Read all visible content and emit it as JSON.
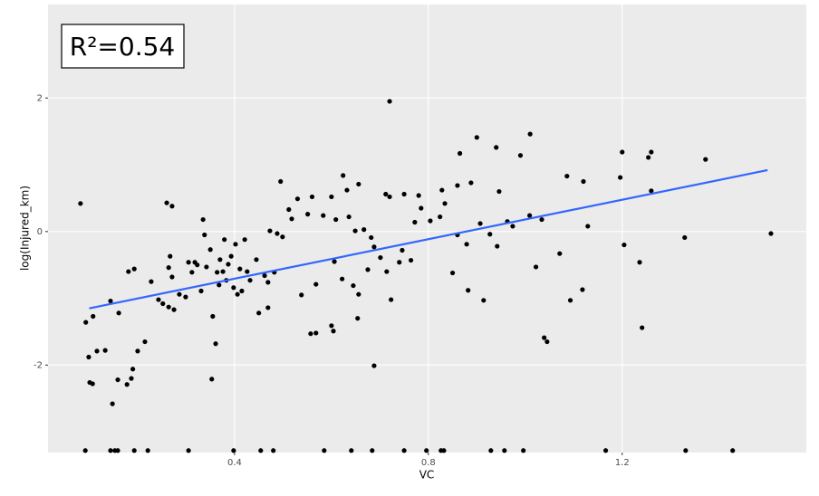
{
  "chart_data": {
    "type": "scatter",
    "x_label": "VC",
    "y_label": "log(Injured_km)",
    "annotation": "R²=0.54",
    "xlim": [
      0.015,
      1.58
    ],
    "ylim": [
      -3.31,
      3.4
    ],
    "xticks": [
      0.4,
      0.8,
      1.2
    ],
    "yticks": [
      -2,
      0,
      2
    ],
    "grid": true,
    "series": [
      {
        "name": "points",
        "color": "#000000",
        "x": [
          0.72,
          0.9,
          1.01,
          0.94,
          0.865,
          0.99,
          1.2,
          1.26,
          1.254,
          1.372,
          1.086,
          1.12,
          1.196,
          1.26,
          0.946,
          0.86,
          0.888,
          0.828,
          0.78,
          0.75,
          0.712,
          0.72,
          0.624,
          0.632,
          0.656,
          0.6,
          0.56,
          0.53,
          0.512,
          0.518,
          0.551,
          0.583,
          0.609,
          0.636,
          0.649,
          0.667,
          0.682,
          0.688,
          0.701,
          0.714,
          0.723,
          0.74,
          0.746,
          0.764,
          0.772,
          0.785,
          0.804,
          0.824,
          0.834,
          0.85,
          0.86,
          0.879,
          0.882,
          0.907,
          0.914,
          0.927,
          0.942,
          0.963,
          0.974,
          1.009,
          1.022,
          1.034,
          1.039,
          1.045,
          1.071,
          1.093,
          1.118,
          1.129,
          1.204,
          1.236,
          1.241,
          1.329,
          1.507,
          0.688,
          0.568,
          0.557,
          0.6,
          0.604,
          0.654,
          0.538,
          0.568,
          0.606,
          0.622,
          0.645,
          0.656,
          0.675,
          0.482,
          0.469,
          0.45,
          0.469,
          0.082,
          0.093,
          0.099,
          0.101,
          0.107,
          0.108,
          0.116,
          0.133,
          0.144,
          0.148,
          0.161,
          0.159,
          0.178,
          0.181,
          0.187,
          0.19,
          0.193,
          0.2,
          0.215,
          0.228,
          0.243,
          0.252,
          0.26,
          0.271,
          0.264,
          0.275,
          0.267,
          0.264,
          0.271,
          0.286,
          0.299,
          0.305,
          0.312,
          0.318,
          0.323,
          0.331,
          0.335,
          0.338,
          0.342,
          0.35,
          0.353,
          0.355,
          0.361,
          0.364,
          0.368,
          0.37,
          0.376,
          0.379,
          0.383,
          0.387,
          0.393,
          0.398,
          0.402,
          0.406,
          0.411,
          0.415,
          0.421,
          0.426,
          0.432,
          0.445,
          0.462,
          0.473,
          0.488,
          0.495,
          0.499,
          0.092,
          0.144,
          0.153,
          0.159,
          0.193,
          0.221,
          0.305,
          0.398,
          0.454,
          0.48,
          0.585,
          0.641,
          0.684,
          0.75,
          0.796,
          0.826,
          0.832,
          0.929,
          0.957,
          0.996,
          1.166,
          1.331,
          1.428
        ],
        "values": [
          1.95,
          1.41,
          1.46,
          1.26,
          1.17,
          1.14,
          1.19,
          1.19,
          1.11,
          1.08,
          0.83,
          0.75,
          0.81,
          0.61,
          0.6,
          0.69,
          0.73,
          0.62,
          0.54,
          0.56,
          0.56,
          0.52,
          0.84,
          0.62,
          0.71,
          0.52,
          0.52,
          0.49,
          0.33,
          0.19,
          0.26,
          0.24,
          0.18,
          0.22,
          0.01,
          0.03,
          -0.09,
          -0.23,
          -0.39,
          -0.6,
          -1.02,
          -0.46,
          -0.28,
          -0.43,
          0.14,
          0.35,
          0.16,
          0.22,
          0.42,
          -0.62,
          -0.05,
          -0.19,
          -0.88,
          0.12,
          -1.03,
          -0.04,
          -0.22,
          0.15,
          0.08,
          0.24,
          -0.53,
          0.18,
          -1.59,
          -1.65,
          -0.33,
          -1.03,
          -0.87,
          0.08,
          -0.2,
          -0.46,
          -1.44,
          -0.09,
          -0.03,
          -2.01,
          -1.52,
          -1.53,
          -1.41,
          -1.49,
          -1.3,
          -0.95,
          -0.79,
          -0.45,
          -0.71,
          -0.81,
          -0.94,
          -0.57,
          -0.61,
          -0.76,
          -1.22,
          -1.14,
          0.42,
          -1.36,
          -1.88,
          -2.26,
          -2.28,
          -1.27,
          -1.79,
          -1.78,
          -1.04,
          -2.58,
          -1.22,
          -2.22,
          -2.29,
          -0.6,
          -2.2,
          -2.06,
          -0.56,
          -1.79,
          -1.65,
          -0.75,
          -1.02,
          -1.08,
          0.43,
          0.38,
          -1.13,
          -1.17,
          -0.37,
          -0.54,
          -0.68,
          -0.94,
          -0.98,
          -0.46,
          -0.61,
          -0.46,
          -0.5,
          -0.89,
          0.18,
          -0.05,
          -0.53,
          -0.27,
          -2.21,
          -1.27,
          -1.68,
          -0.61,
          -0.8,
          -0.42,
          -0.6,
          -0.12,
          -0.73,
          -0.49,
          -0.37,
          -0.84,
          -0.19,
          -0.94,
          -0.56,
          -0.89,
          -0.12,
          -0.6,
          -0.73,
          -0.42,
          -0.66,
          0.01,
          -0.03,
          0.75,
          -0.08,
          -3.28,
          -3.28,
          -3.28,
          -3.28,
          -3.28,
          -3.28,
          -3.28,
          -3.28,
          -3.28,
          -3.28,
          -3.28,
          -3.28,
          -3.28,
          -3.28,
          -3.28,
          -3.28,
          -3.28,
          -3.28,
          -3.28,
          -3.28,
          -3.28,
          -3.28,
          -3.28
        ]
      },
      {
        "name": "fit",
        "color": "#3366ff",
        "x": [
          0.1,
          1.5
        ],
        "values": [
          -1.15,
          0.92
        ]
      }
    ]
  }
}
